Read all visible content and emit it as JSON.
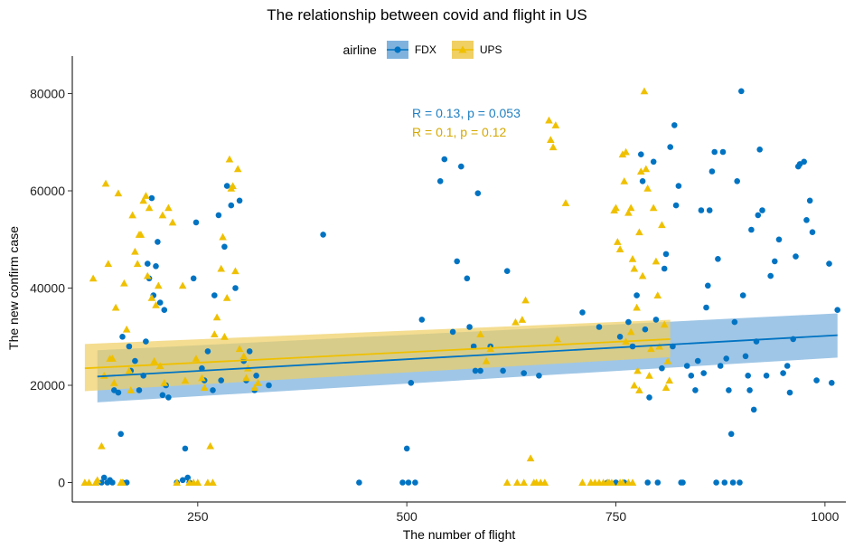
{
  "chart_data": {
    "type": "scatter",
    "title": "The relationship between covid and flight in US",
    "xlabel": "The number of flight",
    "ylabel": "The new confirm case",
    "xlim": [
      100,
      1025
    ],
    "ylim": [
      -4000,
      84000
    ],
    "xticks": [
      250,
      500,
      750,
      1000
    ],
    "yticks": [
      0,
      20000,
      40000,
      60000,
      80000
    ],
    "grid": false,
    "legend": {
      "title": "airline",
      "position": "top"
    },
    "annotations": [
      {
        "text": "R = 0.13, p = 0.053",
        "color": "#1f7fc1"
      },
      {
        "text": "R = 0.1, p = 0.12",
        "color": "#d4a800"
      }
    ],
    "series": [
      {
        "name": "FDX",
        "color": "#0073C2",
        "fill": "#7fb3de",
        "marker": "circle",
        "trend": {
          "x": [
            130,
            1015
          ],
          "y": [
            21800,
            30300
          ],
          "lower": [
            16500,
            25700
          ],
          "upper": [
            27200,
            34800
          ]
        },
        "points": [
          [
            135,
            0
          ],
          [
            138,
            1000
          ],
          [
            142,
            0
          ],
          [
            145,
            500
          ],
          [
            148,
            0
          ],
          [
            160,
            0
          ],
          [
            165,
            0
          ],
          [
            150,
            19000
          ],
          [
            155,
            18500
          ],
          [
            158,
            10000
          ],
          [
            160,
            30000
          ],
          [
            168,
            28000
          ],
          [
            170,
            23000
          ],
          [
            175,
            25000
          ],
          [
            180,
            19000
          ],
          [
            185,
            22000
          ],
          [
            188,
            29000
          ],
          [
            190,
            45000
          ],
          [
            192,
            42000
          ],
          [
            195,
            58500
          ],
          [
            197,
            38500
          ],
          [
            200,
            44500
          ],
          [
            202,
            49500
          ],
          [
            205,
            37000
          ],
          [
            208,
            18000
          ],
          [
            210,
            35500
          ],
          [
            212,
            20000
          ],
          [
            215,
            17500
          ],
          [
            225,
            0
          ],
          [
            232,
            500
          ],
          [
            235,
            7000
          ],
          [
            238,
            1000
          ],
          [
            240,
            0
          ],
          [
            245,
            42000
          ],
          [
            248,
            53500
          ],
          [
            255,
            23500
          ],
          [
            258,
            21000
          ],
          [
            262,
            27000
          ],
          [
            268,
            19000
          ],
          [
            270,
            38500
          ],
          [
            275,
            55000
          ],
          [
            278,
            21000
          ],
          [
            282,
            48500
          ],
          [
            285,
            61000
          ],
          [
            290,
            57000
          ],
          [
            295,
            40000
          ],
          [
            300,
            58000
          ],
          [
            305,
            25000
          ],
          [
            308,
            21000
          ],
          [
            312,
            27000
          ],
          [
            318,
            19000
          ],
          [
            320,
            22000
          ],
          [
            335,
            20000
          ],
          [
            400,
            51000
          ],
          [
            443,
            0
          ],
          [
            495,
            0
          ],
          [
            500,
            7000
          ],
          [
            502,
            0
          ],
          [
            505,
            20500
          ],
          [
            510,
            0
          ],
          [
            518,
            33500
          ],
          [
            540,
            62000
          ],
          [
            545,
            66500
          ],
          [
            555,
            31000
          ],
          [
            560,
            45500
          ],
          [
            565,
            65000
          ],
          [
            572,
            42000
          ],
          [
            575,
            32000
          ],
          [
            580,
            28000
          ],
          [
            582,
            23000
          ],
          [
            585,
            59500
          ],
          [
            588,
            23000
          ],
          [
            600,
            28000
          ],
          [
            615,
            23000
          ],
          [
            620,
            43500
          ],
          [
            640,
            22500
          ],
          [
            658,
            22000
          ],
          [
            710,
            35000
          ],
          [
            730,
            32000
          ],
          [
            740,
            0
          ],
          [
            750,
            0
          ],
          [
            755,
            30000
          ],
          [
            760,
            0
          ],
          [
            765,
            33000
          ],
          [
            770,
            28000
          ],
          [
            775,
            38500
          ],
          [
            780,
            67500
          ],
          [
            782,
            62000
          ],
          [
            785,
            31500
          ],
          [
            788,
            0
          ],
          [
            790,
            17500
          ],
          [
            795,
            66000
          ],
          [
            798,
            33500
          ],
          [
            800,
            0
          ],
          [
            805,
            23500
          ],
          [
            808,
            44000
          ],
          [
            810,
            47000
          ],
          [
            815,
            69000
          ],
          [
            818,
            28000
          ],
          [
            820,
            73500
          ],
          [
            822,
            57000
          ],
          [
            825,
            61000
          ],
          [
            828,
            0
          ],
          [
            830,
            0
          ],
          [
            835,
            24000
          ],
          [
            840,
            22000
          ],
          [
            845,
            19000
          ],
          [
            848,
            25000
          ],
          [
            852,
            56000
          ],
          [
            855,
            22500
          ],
          [
            858,
            36000
          ],
          [
            860,
            40500
          ],
          [
            862,
            56000
          ],
          [
            865,
            64000
          ],
          [
            868,
            68000
          ],
          [
            870,
            0
          ],
          [
            872,
            46000
          ],
          [
            875,
            24000
          ],
          [
            878,
            68000
          ],
          [
            880,
            0
          ],
          [
            882,
            25500
          ],
          [
            885,
            19000
          ],
          [
            888,
            10000
          ],
          [
            890,
            0
          ],
          [
            892,
            33000
          ],
          [
            895,
            62000
          ],
          [
            898,
            0
          ],
          [
            900,
            80500
          ],
          [
            902,
            38500
          ],
          [
            905,
            26000
          ],
          [
            908,
            22000
          ],
          [
            910,
            19000
          ],
          [
            912,
            52000
          ],
          [
            915,
            15000
          ],
          [
            918,
            29000
          ],
          [
            920,
            55000
          ],
          [
            922,
            68500
          ],
          [
            925,
            56000
          ],
          [
            930,
            22000
          ],
          [
            935,
            42500
          ],
          [
            940,
            45500
          ],
          [
            945,
            50000
          ],
          [
            950,
            22500
          ],
          [
            955,
            24000
          ],
          [
            958,
            18500
          ],
          [
            962,
            29500
          ],
          [
            965,
            46500
          ],
          [
            968,
            65000
          ],
          [
            970,
            65500
          ],
          [
            975,
            66000
          ],
          [
            978,
            54000
          ],
          [
            982,
            58000
          ],
          [
            985,
            51500
          ],
          [
            990,
            21000
          ],
          [
            1005,
            45000
          ],
          [
            1008,
            20500
          ],
          [
            1015,
            35500
          ]
        ]
      },
      {
        "name": "UPS",
        "color": "#EFC000",
        "fill": "#f0cf63",
        "marker": "triangle",
        "trend": {
          "x": [
            115,
            815
          ],
          "y": [
            23500,
            29500
          ],
          "lower": [
            18800,
            25800
          ],
          "upper": [
            28500,
            33500
          ]
        },
        "points": [
          [
            115,
            0
          ],
          [
            120,
            0
          ],
          [
            125,
            42000
          ],
          [
            128,
            0
          ],
          [
            130,
            500
          ],
          [
            135,
            7500
          ],
          [
            138,
            22000
          ],
          [
            140,
            61500
          ],
          [
            143,
            45000
          ],
          [
            145,
            25500
          ],
          [
            148,
            25500
          ],
          [
            150,
            20500
          ],
          [
            152,
            36000
          ],
          [
            155,
            59500
          ],
          [
            158,
            0
          ],
          [
            160,
            0
          ],
          [
            162,
            41000
          ],
          [
            165,
            31500
          ],
          [
            168,
            23000
          ],
          [
            170,
            19000
          ],
          [
            172,
            55000
          ],
          [
            175,
            47500
          ],
          [
            178,
            45000
          ],
          [
            180,
            51000
          ],
          [
            182,
            51000
          ],
          [
            185,
            58000
          ],
          [
            188,
            59000
          ],
          [
            190,
            42500
          ],
          [
            192,
            56500
          ],
          [
            195,
            38000
          ],
          [
            198,
            25000
          ],
          [
            200,
            36500
          ],
          [
            203,
            40500
          ],
          [
            205,
            24000
          ],
          [
            208,
            55000
          ],
          [
            210,
            20500
          ],
          [
            215,
            56500
          ],
          [
            220,
            53500
          ],
          [
            225,
            0
          ],
          [
            232,
            40500
          ],
          [
            235,
            21000
          ],
          [
            240,
            0
          ],
          [
            245,
            0
          ],
          [
            248,
            25500
          ],
          [
            250,
            0
          ],
          [
            255,
            21500
          ],
          [
            258,
            19500
          ],
          [
            262,
            0
          ],
          [
            265,
            7500
          ],
          [
            268,
            0
          ],
          [
            270,
            30500
          ],
          [
            273,
            34000
          ],
          [
            278,
            44000
          ],
          [
            280,
            50500
          ],
          [
            282,
            30000
          ],
          [
            285,
            38000
          ],
          [
            288,
            66500
          ],
          [
            290,
            60500
          ],
          [
            292,
            61000
          ],
          [
            295,
            43500
          ],
          [
            298,
            64500
          ],
          [
            300,
            27500
          ],
          [
            305,
            26000
          ],
          [
            308,
            21500
          ],
          [
            310,
            23500
          ],
          [
            318,
            19500
          ],
          [
            322,
            20500
          ],
          [
            588,
            30500
          ],
          [
            595,
            25000
          ],
          [
            600,
            27500
          ],
          [
            620,
            0
          ],
          [
            630,
            33000
          ],
          [
            632,
            0
          ],
          [
            638,
            33500
          ],
          [
            640,
            0
          ],
          [
            642,
            37500
          ],
          [
            648,
            5000
          ],
          [
            652,
            0
          ],
          [
            655,
            0
          ],
          [
            660,
            0
          ],
          [
            665,
            0
          ],
          [
            670,
            74500
          ],
          [
            672,
            70500
          ],
          [
            675,
            69000
          ],
          [
            678,
            73500
          ],
          [
            680,
            29500
          ],
          [
            690,
            57500
          ],
          [
            710,
            0
          ],
          [
            720,
            0
          ],
          [
            725,
            0
          ],
          [
            730,
            0
          ],
          [
            735,
            0
          ],
          [
            740,
            0
          ],
          [
            742,
            0
          ],
          [
            745,
            0
          ],
          [
            748,
            56000
          ],
          [
            750,
            56500
          ],
          [
            752,
            49500
          ],
          [
            755,
            48000
          ],
          [
            758,
            67500
          ],
          [
            760,
            62000
          ],
          [
            762,
            68000
          ],
          [
            765,
            55500
          ],
          [
            768,
            56500
          ],
          [
            770,
            46000
          ],
          [
            772,
            44000
          ],
          [
            775,
            36000
          ],
          [
            778,
            51500
          ],
          [
            780,
            64000
          ],
          [
            782,
            42500
          ],
          [
            784,
            80500
          ],
          [
            786,
            64500
          ],
          [
            788,
            60500
          ],
          [
            790,
            22000
          ],
          [
            792,
            27500
          ],
          [
            795,
            56500
          ],
          [
            798,
            45500
          ],
          [
            800,
            38500
          ],
          [
            802,
            28000
          ],
          [
            805,
            53000
          ],
          [
            808,
            32500
          ],
          [
            810,
            19500
          ],
          [
            812,
            25000
          ],
          [
            814,
            21000
          ],
          [
            772,
            20000
          ],
          [
            776,
            23000
          ],
          [
            778,
            19000
          ],
          [
            768,
            31000
          ],
          [
            762,
            29000
          ],
          [
            755,
            0
          ],
          [
            758,
            0
          ],
          [
            765,
            0
          ],
          [
            770,
            0
          ]
        ]
      }
    ]
  }
}
